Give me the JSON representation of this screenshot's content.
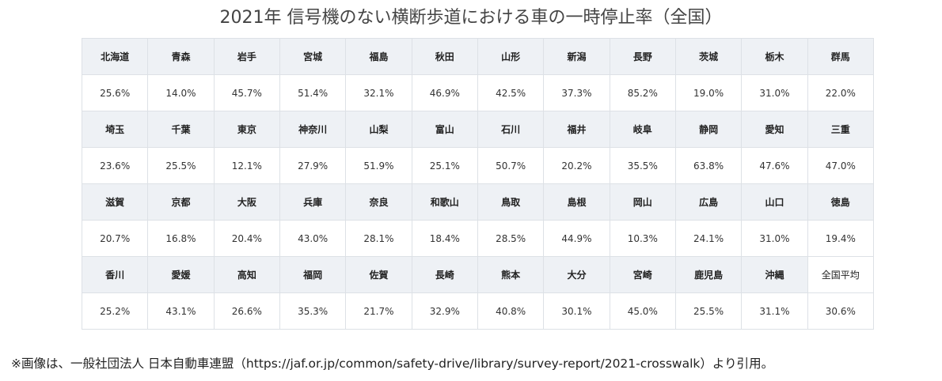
{
  "title": "2021年 信号機のない横断歩道における車の一時停止率（全国）",
  "table": {
    "rows": [
      [
        "北海道",
        "青森",
        "岩手",
        "宮城",
        "福島",
        "秋田",
        "山形",
        "新潟",
        "長野",
        "茨城",
        "栃木",
        "群馬"
      ],
      [
        "25.6%",
        "14.0%",
        "45.7%",
        "51.4%",
        "32.1%",
        "46.9%",
        "42.5%",
        "37.3%",
        "85.2%",
        "19.0%",
        "31.0%",
        "22.0%"
      ],
      [
        "埼玉",
        "千葉",
        "東京",
        "神奈川",
        "山梨",
        "富山",
        "石川",
        "福井",
        "岐阜",
        "静岡",
        "愛知",
        "三重"
      ],
      [
        "23.6%",
        "25.5%",
        "12.1%",
        "27.9%",
        "51.9%",
        "25.1%",
        "50.7%",
        "20.2%",
        "35.5%",
        "63.8%",
        "47.6%",
        "47.0%"
      ],
      [
        "滋賀",
        "京都",
        "大阪",
        "兵庫",
        "奈良",
        "和歌山",
        "鳥取",
        "島根",
        "岡山",
        "広島",
        "山口",
        "徳島"
      ],
      [
        "20.7%",
        "16.8%",
        "20.4%",
        "43.0%",
        "28.1%",
        "18.4%",
        "28.5%",
        "44.9%",
        "10.3%",
        "24.1%",
        "31.0%",
        "19.4%"
      ],
      [
        "香川",
        "愛媛",
        "高知",
        "福岡",
        "佐賀",
        "長崎",
        "熊本",
        "大分",
        "宮崎",
        "鹿児島",
        "沖縄",
        "全国平均"
      ],
      [
        "25.2%",
        "43.1%",
        "26.6%",
        "35.3%",
        "21.7%",
        "32.9%",
        "40.8%",
        "30.1%",
        "45.0%",
        "25.5%",
        "31.1%",
        "30.6%"
      ]
    ]
  },
  "footnote": "※画像は、一般社団法人 日本自動車連盟（https://jaf.or.jp/common/safety-drive/library/survey-report/2021-crosswalk）より引用。"
}
